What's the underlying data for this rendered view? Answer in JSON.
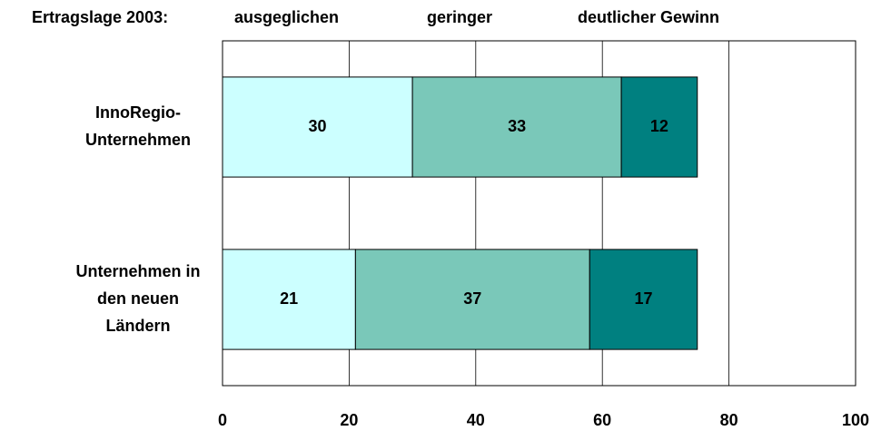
{
  "chart_data": {
    "type": "stacked_barh",
    "title": "Ertragslage 2003:",
    "categories": [
      [
        "InnoRegio-",
        "Unternehmen"
      ],
      [
        "Unternehmen in",
        "den neuen",
        "Ländern"
      ]
    ],
    "series": [
      {
        "name": "ausgeglichen",
        "color": "#ccffff",
        "label_weight": "bold",
        "values": [
          30,
          21
        ]
      },
      {
        "name": "geringer",
        "color": "#7ac8b9",
        "label_weight": "normal",
        "values": [
          33,
          37
        ]
      },
      {
        "name": "deutlicher Gewinn",
        "color": "#008080",
        "label_weight": "bold",
        "values": [
          12,
          17
        ]
      }
    ],
    "xlim": [
      0,
      100
    ],
    "xticks": [
      0,
      20,
      40,
      60,
      80,
      100
    ],
    "grid": true
  }
}
